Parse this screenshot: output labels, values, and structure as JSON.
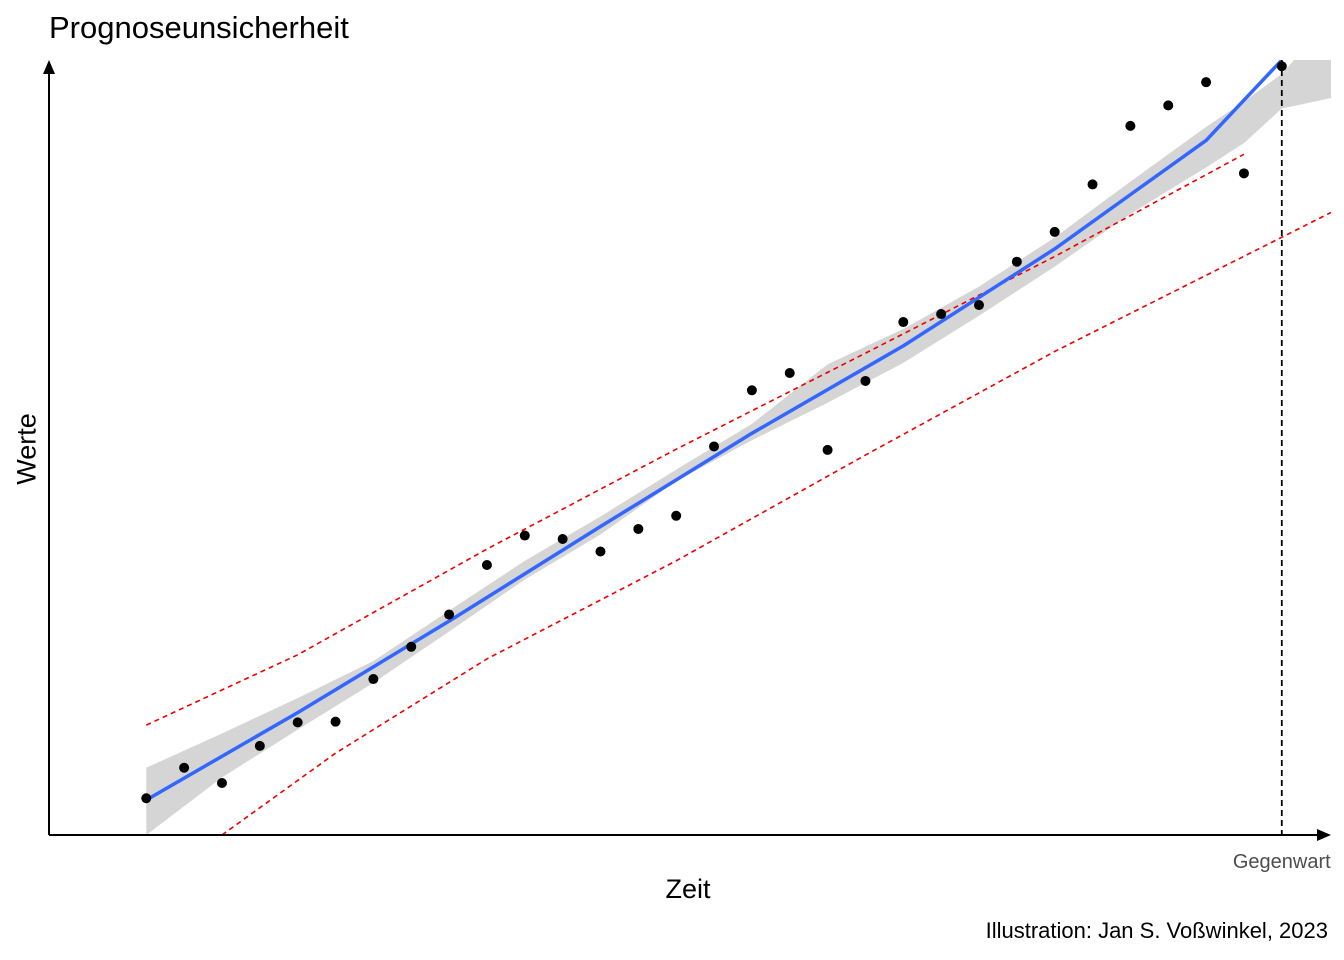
{
  "chart_data": {
    "type": "scatter",
    "title": "Prognoseunsicherheit",
    "xlabel": "Zeit",
    "ylabel": "Werte",
    "caption": "Illustration: Jan S. Voßwinkel, 2023",
    "xlim": [
      -1.57,
      32.3
    ],
    "ylim": [
      -1.06,
      21.3
    ],
    "x_tick_labels": [
      {
        "x": 31.0,
        "label": "Gegenwart"
      }
    ],
    "reference_line": {
      "x": 31.0,
      "style": "dashed",
      "color": "#000000"
    },
    "grid": false,
    "legend": "none",
    "points": {
      "x": [
        1,
        2,
        3,
        4,
        5,
        6,
        7,
        8,
        9,
        10,
        11,
        12,
        13,
        14,
        15,
        16,
        17,
        18,
        19,
        20,
        21,
        22,
        23,
        24,
        25,
        26,
        27,
        28,
        29,
        30,
        31
      ],
      "y": [
        0.0,
        0.88,
        0.44,
        1.51,
        2.19,
        2.21,
        3.44,
        4.37,
        5.3,
        6.73,
        7.58,
        7.48,
        7.12,
        7.77,
        8.15,
        10.15,
        11.77,
        12.27,
        10.05,
        12.04,
        13.74,
        13.97,
        14.23,
        15.48,
        16.34,
        17.71,
        19.4,
        19.99,
        20.66,
        18.03,
        21.12
      ]
    },
    "fit": {
      "x": [
        1,
        5,
        9,
        13,
        17,
        21,
        25,
        29,
        31
      ],
      "y": [
        -0.05,
        2.47,
        5.11,
        7.84,
        10.53,
        13.05,
        15.85,
        18.98,
        21.3
      ]
    },
    "confidence_band": {
      "x": [
        1,
        3,
        5,
        7,
        9,
        11,
        13,
        15,
        17,
        19,
        21,
        23,
        25,
        27,
        29,
        30,
        31,
        32.3
      ],
      "lower": [
        -1.06,
        0.6,
        1.98,
        3.33,
        4.81,
        6.31,
        7.61,
        9.15,
        10.33,
        11.41,
        12.56,
        13.92,
        15.34,
        16.86,
        18.2,
        18.9,
        19.9,
        20.2
      ],
      "upper": [
        0.88,
        1.87,
        2.89,
        3.96,
        5.41,
        6.85,
        8.13,
        9.48,
        10.8,
        12.52,
        13.54,
        14.76,
        16.18,
        17.79,
        19.37,
        20.1,
        20.9,
        22.5
      ]
    },
    "prediction_upper": {
      "x": [
        1,
        5,
        10,
        15,
        20,
        25,
        30
      ],
      "y": [
        2.11,
        4.14,
        7.19,
        10.07,
        12.84,
        15.63,
        18.58
      ]
    },
    "prediction_lower": {
      "x": [
        3,
        6,
        10,
        15,
        20,
        25,
        32.3
      ],
      "y": [
        -1.06,
        1.3,
        4.02,
        6.85,
        9.9,
        12.89,
        16.9
      ]
    },
    "colors": {
      "points": "#000000",
      "fit_line": "#3366ff",
      "confidence_band": "#d3d3d3",
      "prediction_interval": "#ee0000",
      "reference_line": "#000000",
      "axes": "#000000"
    }
  }
}
